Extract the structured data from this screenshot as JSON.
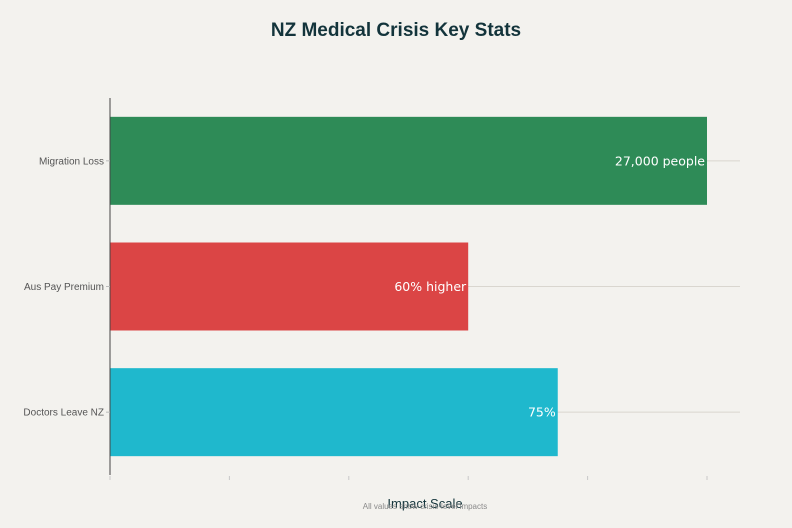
{
  "chart_data": {
    "type": "bar",
    "orientation": "horizontal",
    "title": "NZ Medical Crisis Key Stats",
    "xlabel": "Impact Scale",
    "ylabel": "",
    "subtitle": "All values show crisis-level impacts",
    "categories": [
      "Migration Loss",
      "Aus Pay Premium",
      "Doctors Leave NZ"
    ],
    "values": [
      100,
      60,
      75
    ],
    "data_labels": [
      "27,000 people",
      "60% higher",
      "75%"
    ],
    "colors": [
      "#2E8B57",
      "#DB4545",
      "#1FB8CD"
    ],
    "xlim": [
      0,
      100
    ],
    "xticks": [
      0,
      20,
      40,
      60,
      80,
      100
    ],
    "xtick_labels_visible": false,
    "grid": true,
    "legend": "none"
  }
}
